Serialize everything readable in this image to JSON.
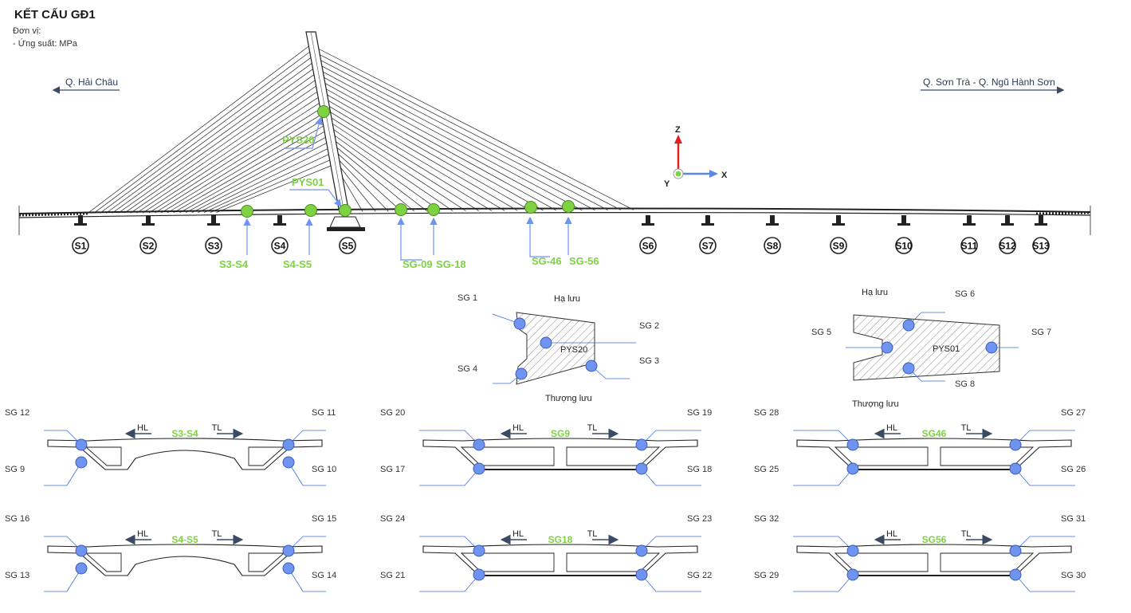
{
  "header": {
    "title": "KẾT CẤU GĐ1",
    "unit_label": "Đơn vị:",
    "unit_value": "- Ứng suất: MPa"
  },
  "directions": {
    "left": "Q. Hải Châu",
    "right": "Q. Sơn Trà - Q. Ngũ Hành Sơn"
  },
  "axes": {
    "z": "Z",
    "x": "X",
    "y": "Y"
  },
  "piers": [
    "S1",
    "S2",
    "S3",
    "S4",
    "S5",
    "S6",
    "S7",
    "S8",
    "S9",
    "S10",
    "S11",
    "S12",
    "S13"
  ],
  "sensor_labels": {
    "pys20": "PYS20",
    "pys01": "PYS01",
    "s3s4": "S3-S4",
    "s4s5": "S4-S5",
    "sg09": "SG-09",
    "sg18": "SG-18",
    "sg46": "SG-46",
    "sg56": "SG-56"
  },
  "pylon_sections": {
    "pys20": {
      "name": "PYS20",
      "top": "Hạ lưu",
      "bottom": "Thượng lưu",
      "gauges": [
        "SG 1",
        "SG 2",
        "SG 3",
        "SG 4"
      ]
    },
    "pys01": {
      "name": "PYS01",
      "top": "Hạ lưu",
      "bottom": "Thượng lưu",
      "gauges": [
        "SG 5",
        "SG 6",
        "SG 7",
        "SG 8"
      ]
    }
  },
  "deck_sections": {
    "hl": "HL",
    "tl": "TL",
    "items": [
      {
        "title": "S3-S4",
        "tl": "SG 12",
        "tr": "SG 11",
        "bl": "SG 9",
        "br": "SG 10"
      },
      {
        "title": "SG9",
        "tl": "SG 20",
        "tr": "SG 19",
        "bl": "SG 17",
        "br": "SG 18"
      },
      {
        "title": "SG46",
        "tl": "SG 28",
        "tr": "SG 27",
        "bl": "SG 25",
        "br": "SG 26"
      },
      {
        "title": "S4-S5",
        "tl": "SG 16",
        "tr": "SG 15",
        "bl": "SG 13",
        "br": "SG 14"
      },
      {
        "title": "SG18",
        "tl": "SG 24",
        "tr": "SG 23",
        "bl": "SG 21",
        "br": "SG 22"
      },
      {
        "title": "SG56",
        "tl": "SG 32",
        "tr": "SG 31",
        "bl": "SG 29",
        "br": "SG 30"
      }
    ]
  },
  "colors": {
    "sensor_green": "#7ed242",
    "gauge_blue": "#6f93f0",
    "leader_blue": "#3a6fd8",
    "arrow_dark": "#3b4a63",
    "axis_z": "#e02020",
    "axis_x": "#5b86e5"
  }
}
